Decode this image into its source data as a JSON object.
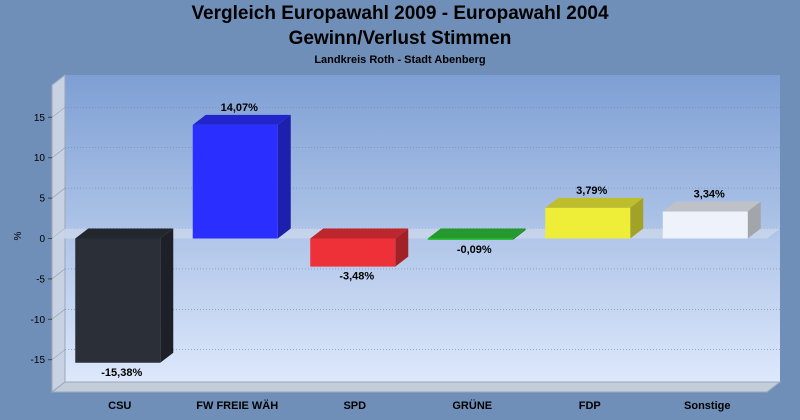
{
  "header": {
    "title": "Vergleich Europawahl 2009 - Europawahl 2004",
    "subtitle": "Gewinn/Verlust Stimmen",
    "caption": "Landkreis Roth - Stadt Abenberg"
  },
  "chart_data": {
    "type": "bar",
    "title": "Vergleich Europawahl 2009 - Europawahl 2004",
    "subtitle": "Gewinn/Verlust Stimmen",
    "caption": "Landkreis Roth - Stadt Abenberg",
    "xlabel": "",
    "ylabel": "%",
    "ylim": [
      -19,
      19
    ],
    "yticks": [
      15,
      10,
      5,
      0,
      -5,
      -10,
      -15
    ],
    "grid": true,
    "categories": [
      "CSU",
      "FW FREIE WÄH",
      "SPD",
      "GRÜNE",
      "FDP",
      "Sonstige"
    ],
    "values": [
      -15.38,
      14.07,
      -3.48,
      -0.09,
      3.79,
      3.34
    ],
    "value_labels": [
      "-15,38%",
      "14,07%",
      "-3,48%",
      "-0,09%",
      "3,79%",
      "3,34%"
    ],
    "colors": [
      "#2b2f38",
      "#2a2eff",
      "#ee3038",
      "#2fbf3a",
      "#eeee38",
      "#eef2fa"
    ],
    "background_colors": {
      "page": "#6f8fb8",
      "plot_top": "#7e9fd4",
      "plot_bottom": "#dde8fb"
    }
  }
}
